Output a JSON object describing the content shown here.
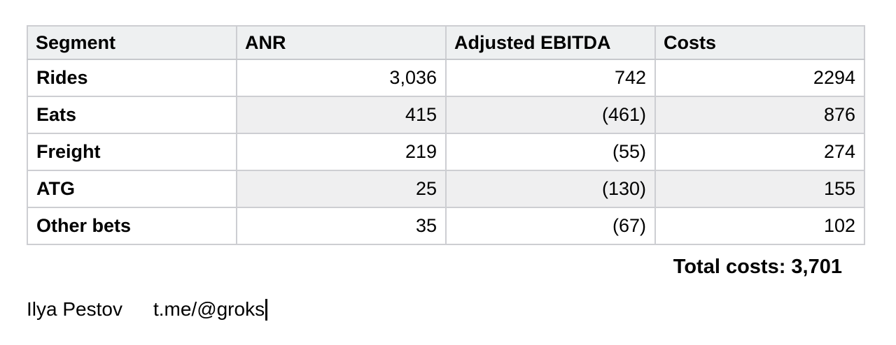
{
  "table": {
    "headers": [
      "Segment",
      "ANR",
      "Adjusted EBITDA",
      "Costs"
    ],
    "rows": [
      [
        "Rides",
        "3,036",
        "742",
        "2294"
      ],
      [
        "Eats",
        "415",
        "(461)",
        "876"
      ],
      [
        "Freight",
        "219",
        "(55)",
        "274"
      ],
      [
        "ATG",
        "25",
        "(130)",
        "155"
      ],
      [
        "Other bets",
        "35",
        "(67)",
        "102"
      ]
    ]
  },
  "summary": {
    "total_costs": "Total costs: 3,701"
  },
  "footer": {
    "author": "Ilya Pestov",
    "handle": "t.me/@groks"
  },
  "colors": {
    "header_bg": "#eef0f1",
    "stripe_bg": "#efeff0",
    "border": "#cdced2",
    "text": "#000000"
  }
}
